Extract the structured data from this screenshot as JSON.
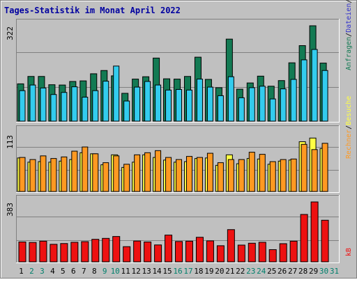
{
  "title": "Tages-Statistik im Monat April 2022",
  "colors": {
    "background": "#c0c0c0",
    "border": "#808080",
    "title": "#0000a0",
    "grid": "#808080",
    "requests": "#137a53",
    "files": "#33ccee",
    "pages": "#ffff44",
    "visits": "#ff9922",
    "kbytes": "#ee1111",
    "day_weekday": "#000000",
    "day_weekend": "#00806c"
  },
  "chart_data": [
    {
      "type": "bar",
      "panel": "top",
      "max_label": "322",
      "ylim": [
        0,
        322
      ],
      "right_legend": [
        {
          "text": "Anfragen",
          "color": "#137a53"
        },
        {
          "text": "Dateien",
          "color": "#3333cc"
        },
        {
          "text": "Seiten",
          "color": "#33ccee"
        }
      ],
      "series": [
        {
          "name": "Anfragen",
          "values": [
            126,
            151,
            151,
            123,
            122,
            134,
            136,
            160,
            171,
            153,
            94,
            142,
            150,
            213,
            143,
            142,
            151,
            216,
            141,
            113,
            277,
            108,
            129,
            152,
            118,
            137,
            197,
            255,
            322,
            196
          ]
        },
        {
          "name": "Dateien",
          "values": [
            103,
            122,
            112,
            90,
            97,
            116,
            81,
            103,
            135,
            186,
            68,
            115,
            134,
            122,
            105,
            107,
            105,
            142,
            115,
            86,
            150,
            79,
            113,
            118,
            75,
            109,
            141,
            207,
            242,
            171
          ]
        }
      ]
    },
    {
      "type": "bar",
      "panel": "middle",
      "max_label": "113",
      "ylim": [
        0,
        113
      ],
      "right_legend": [
        {
          "text": "Rechner",
          "color": "#ff9922"
        },
        {
          "text": "Besuche",
          "color": "#ffff44"
        }
      ],
      "series": [
        {
          "name": "Besuche",
          "values": [
            64,
            56,
            57,
            56,
            58,
            61,
            74,
            72,
            51,
            70,
            46,
            56,
            70,
            65,
            60,
            56,
            57,
            63,
            64,
            50,
            70,
            53,
            63,
            62,
            52,
            58,
            60,
            95,
            102,
            82
          ]
        },
        {
          "name": "Rechner",
          "values": [
            65,
            61,
            68,
            63,
            66,
            77,
            85,
            72,
            55,
            68,
            52,
            70,
            74,
            78,
            65,
            61,
            67,
            65,
            73,
            55,
            61,
            61,
            75,
            71,
            57,
            61,
            62,
            90,
            80,
            92
          ]
        }
      ]
    },
    {
      "type": "bar",
      "panel": "bottom",
      "max_label": "383",
      "ylim": [
        0,
        383
      ],
      "right_legend": [
        {
          "text": "kB",
          "color": "#ee1111"
        }
      ],
      "series": [
        {
          "name": "kB",
          "values": [
            127,
            124,
            132,
            112,
            117,
            125,
            129,
            144,
            150,
            162,
            97,
            133,
            127,
            108,
            171,
            130,
            132,
            157,
            134,
            103,
            206,
            107,
            119,
            125,
            78,
            116,
            132,
            303,
            383,
            266
          ]
        }
      ]
    }
  ],
  "days": [
    {
      "label": "1",
      "weekend": false
    },
    {
      "label": "2",
      "weekend": true
    },
    {
      "label": "3",
      "weekend": true
    },
    {
      "label": "4",
      "weekend": false
    },
    {
      "label": "5",
      "weekend": false
    },
    {
      "label": "6",
      "weekend": false
    },
    {
      "label": "7",
      "weekend": false
    },
    {
      "label": "8",
      "weekend": false
    },
    {
      "label": "9",
      "weekend": true
    },
    {
      "label": "10",
      "weekend": true
    },
    {
      "label": "11",
      "weekend": false
    },
    {
      "label": "12",
      "weekend": false
    },
    {
      "label": "13",
      "weekend": false
    },
    {
      "label": "14",
      "weekend": false
    },
    {
      "label": "15",
      "weekend": false
    },
    {
      "label": "16",
      "weekend": true
    },
    {
      "label": "17",
      "weekend": true
    },
    {
      "label": "18",
      "weekend": false
    },
    {
      "label": "19",
      "weekend": false
    },
    {
      "label": "20",
      "weekend": false
    },
    {
      "label": "21",
      "weekend": false
    },
    {
      "label": "22",
      "weekend": false
    },
    {
      "label": "23",
      "weekend": true
    },
    {
      "label": "24",
      "weekend": true
    },
    {
      "label": "25",
      "weekend": false
    },
    {
      "label": "26",
      "weekend": false
    },
    {
      "label": "27",
      "weekend": false
    },
    {
      "label": "28",
      "weekend": false
    },
    {
      "label": "29",
      "weekend": false
    },
    {
      "label": "30",
      "weekend": true
    },
    {
      "label": "31",
      "weekend": true
    }
  ]
}
